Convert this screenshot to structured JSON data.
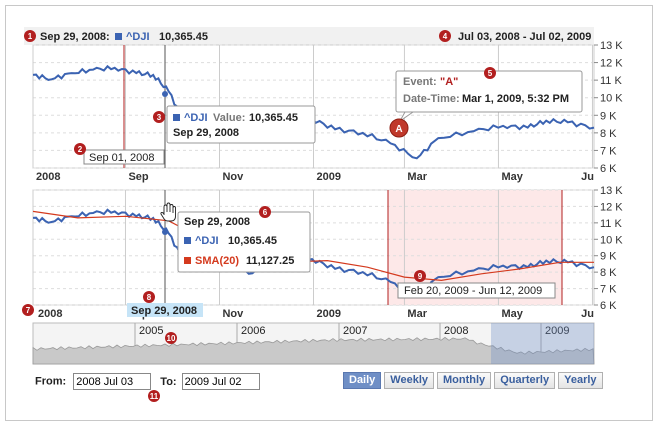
{
  "header": {
    "hover_date": "Sep 29, 2008:",
    "series_label": "^DJI",
    "series_value": "10,365.45",
    "range_label": "Jul 03, 2008 - Jul 02, 2009"
  },
  "markers": [
    "1",
    "2",
    "3",
    "4",
    "5",
    "6",
    "7",
    "8",
    "9",
    "10",
    "11"
  ],
  "main_tooltip": {
    "series": "^DJI",
    "value_label": "Value:",
    "value": "10,365.45",
    "date": "Sep 29, 2008"
  },
  "event_tooltip": {
    "event_label": "Event:",
    "event_name": "\"A\"",
    "datetime_label": "Date-Time:",
    "datetime": "Mar 1, 2009, 5:32 PM",
    "marker_letter": "A"
  },
  "range_flag_top": "Sep 01, 2008",
  "lower_tooltip": {
    "date": "Sep 29, 2008",
    "s1_name": "^DJI",
    "s1_value": "10,365.45",
    "s2_name": "SMA(20)",
    "s2_value": "11,127.25"
  },
  "range_flag_lower": "Feb 20, 2009 - Jun 12, 2009",
  "x_cursor_label": "Sep 29, 2008",
  "navigator_years": [
    "2005",
    "2006",
    "2007",
    "2008",
    "2009"
  ],
  "form": {
    "from_label": "From:",
    "from_value": "2008 Jul 03",
    "to_label": "To:",
    "to_value": "2009 Jul 02"
  },
  "buttons": [
    "Daily",
    "Weekly",
    "Monthly",
    "Quarterly",
    "Yearly"
  ],
  "active_button": "Daily",
  "colors": {
    "dji": "#3b63b2",
    "sma": "#d43a1e",
    "marker": "#b21f1f",
    "highlight": "#fde8e8",
    "cursor_label_bg": "#c6e4f7"
  },
  "chart_data": [
    {
      "type": "line",
      "title": "",
      "xlabel": "",
      "ylabel": "",
      "ylim": [
        6000,
        13000
      ],
      "y_ticks": [
        "6 K",
        "7 K",
        "8 K",
        "9 K",
        "10 K",
        "11 K",
        "12 K",
        "13 K"
      ],
      "x_tick_labels": [
        "2008",
        "Sep",
        "Nov",
        "2009",
        "Mar",
        "May",
        "Ju"
      ],
      "x_range": [
        "2008-07-03",
        "2009-07-02"
      ],
      "series": [
        {
          "name": "^DJI",
          "x": [
            "2008-07-03",
            "2008-07-15",
            "2008-07-28",
            "2008-08-11",
            "2008-08-25",
            "2008-09-08",
            "2008-09-19",
            "2008-09-29",
            "2008-10-10",
            "2008-10-27",
            "2008-11-04",
            "2008-11-20",
            "2008-12-04",
            "2008-12-31",
            "2009-01-15",
            "2009-02-02",
            "2009-02-20",
            "2009-03-09",
            "2009-03-23",
            "2009-04-15",
            "2009-05-04",
            "2009-05-20",
            "2009-06-01",
            "2009-06-15",
            "2009-07-02"
          ],
          "values": [
            11300,
            11050,
            11400,
            11600,
            11700,
            11400,
            11300,
            10365,
            8500,
            8700,
            9400,
            7900,
            8600,
            8800,
            8200,
            8000,
            7400,
            6550,
            7700,
            8100,
            8400,
            8300,
            8700,
            8600,
            8300
          ]
        }
      ]
    },
    {
      "type": "line",
      "title": "",
      "xlabel": "",
      "ylabel": "",
      "ylim": [
        6000,
        13000
      ],
      "y_ticks": [
        "6 K",
        "7 K",
        "8 K",
        "9 K",
        "10 K",
        "11 K",
        "12 K",
        "13 K"
      ],
      "x_tick_labels": [
        "2008",
        "Sep",
        "Nov",
        "2009",
        "Mar",
        "May",
        "Ju"
      ],
      "x_range": [
        "2008-07-03",
        "2009-07-02"
      ],
      "series": [
        {
          "name": "^DJI",
          "x": [
            "2008-07-03",
            "2008-07-15",
            "2008-07-28",
            "2008-08-11",
            "2008-08-25",
            "2008-09-08",
            "2008-09-19",
            "2008-09-29",
            "2008-10-10",
            "2008-10-27",
            "2008-11-04",
            "2008-11-20",
            "2008-12-04",
            "2008-12-31",
            "2009-01-15",
            "2009-02-02",
            "2009-02-20",
            "2009-03-09",
            "2009-03-23",
            "2009-04-15",
            "2009-05-04",
            "2009-05-20",
            "2009-06-01",
            "2009-06-15",
            "2009-07-02"
          ],
          "values": [
            11300,
            11050,
            11400,
            11600,
            11700,
            11400,
            11300,
            10365,
            8500,
            8700,
            9400,
            7900,
            8600,
            8800,
            8200,
            8000,
            7400,
            6550,
            7700,
            8100,
            8400,
            8300,
            8700,
            8600,
            8300
          ]
        },
        {
          "name": "SMA(20)",
          "x": [
            "2008-07-03",
            "2008-08-01",
            "2008-09-01",
            "2008-09-29",
            "2008-10-20",
            "2008-11-15",
            "2008-12-10",
            "2009-01-10",
            "2009-02-05",
            "2009-03-01",
            "2009-03-25",
            "2009-04-20",
            "2009-05-15",
            "2009-06-10",
            "2009-07-02"
          ],
          "values": [
            11700,
            11300,
            11400,
            11127,
            10100,
            9000,
            8600,
            8700,
            8300,
            7700,
            7500,
            7900,
            8200,
            8600,
            8600
          ]
        }
      ]
    }
  ]
}
